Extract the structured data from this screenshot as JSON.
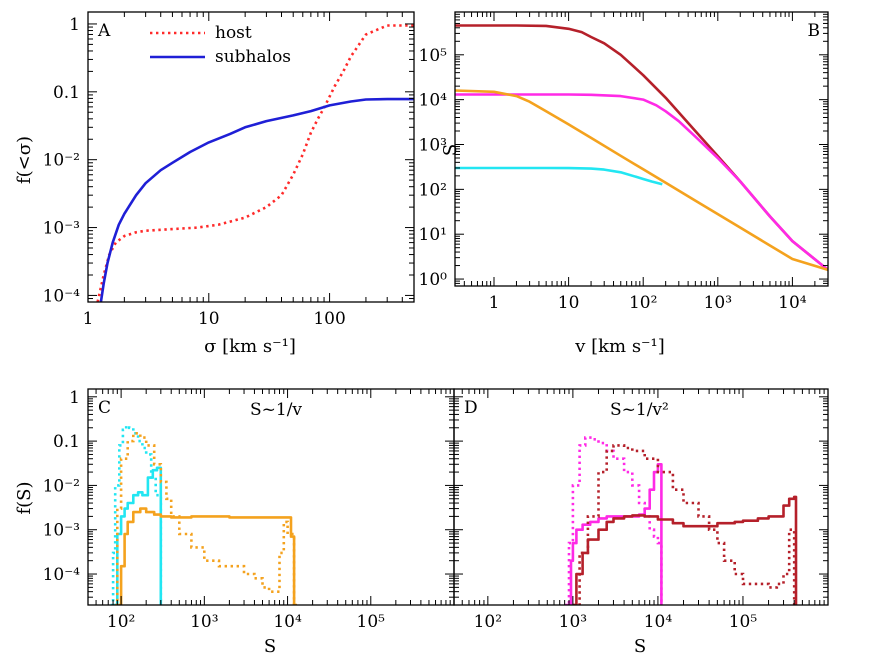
{
  "chart_data": [
    {
      "id": "A",
      "type": "line",
      "panel_label": "A",
      "xlabel": "σ [km s⁻¹]",
      "ylabel": "f(<σ)",
      "xscale": "log",
      "yscale": "log",
      "xlim": [
        1,
        500
      ],
      "ylim": [
        8e-05,
        1.5
      ],
      "xticks": [
        {
          "v": 1,
          "label": "1"
        },
        {
          "v": 10,
          "label": "10"
        },
        {
          "v": 100,
          "label": "100"
        }
      ],
      "yticks": [
        {
          "v": 0.0001,
          "label": "10⁻⁴"
        },
        {
          "v": 0.001,
          "label": "10⁻³"
        },
        {
          "v": 0.01,
          "label": "10⁻²"
        },
        {
          "v": 0.1,
          "label": "0.1"
        },
        {
          "v": 1,
          "label": "1"
        }
      ],
      "legend": {
        "position": "top-left",
        "entries": [
          {
            "name": "host",
            "color": "#ff2a2a",
            "style": "dotted"
          },
          {
            "name": "subhalos",
            "color": "#1f1fd6",
            "style": "solid"
          }
        ]
      },
      "series": [
        {
          "name": "host",
          "color": "#ff2a2a",
          "style": "dotted",
          "x": [
            1.2,
            1.35,
            1.5,
            1.7,
            2,
            2.5,
            3,
            5,
            8,
            12,
            20,
            30,
            40,
            50,
            60,
            70,
            80,
            90,
            100,
            110,
            130,
            150,
            200,
            300,
            500
          ],
          "y": [
            8e-05,
            0.0002,
            0.0004,
            0.0006,
            0.00075,
            0.00085,
            0.0009,
            0.00095,
            0.001,
            0.0011,
            0.0014,
            0.002,
            0.003,
            0.006,
            0.012,
            0.025,
            0.04,
            0.058,
            0.085,
            0.12,
            0.2,
            0.33,
            0.7,
            0.95,
            0.95
          ]
        },
        {
          "name": "subhalos",
          "color": "#1f1fd6",
          "style": "solid",
          "x": [
            1.28,
            1.35,
            1.45,
            1.6,
            1.8,
            2,
            2.5,
            3,
            4,
            5,
            7,
            10,
            15,
            20,
            30,
            50,
            70,
            100,
            150,
            200,
            300,
            500
          ],
          "y": [
            8e-05,
            0.00015,
            0.0003,
            0.0006,
            0.0011,
            0.0016,
            0.003,
            0.0045,
            0.007,
            0.009,
            0.013,
            0.018,
            0.024,
            0.03,
            0.037,
            0.045,
            0.052,
            0.063,
            0.072,
            0.077,
            0.078,
            0.078
          ]
        }
      ]
    },
    {
      "id": "B",
      "type": "line",
      "panel_label": "B",
      "xlabel": "v [km s⁻¹]",
      "ylabel": "S",
      "xscale": "log",
      "yscale": "log",
      "xlim": [
        0.3,
        30000
      ],
      "ylim": [
        0.7,
        900000
      ],
      "xticks": [
        {
          "v": 1,
          "label": "1"
        },
        {
          "v": 10,
          "label": "10"
        },
        {
          "v": 100,
          "label": "10²"
        },
        {
          "v": 1000,
          "label": "10³"
        },
        {
          "v": 10000,
          "label": "10⁴"
        }
      ],
      "yticks": [
        {
          "v": 1,
          "label": "10⁰"
        },
        {
          "v": 10,
          "label": "10¹"
        },
        {
          "v": 100,
          "label": "10²"
        },
        {
          "v": 1000,
          "label": "10³"
        },
        {
          "v": 10000,
          "label": "10⁴"
        },
        {
          "v": 100000,
          "label": "10⁵"
        }
      ],
      "series": [
        {
          "color": "#b5202a",
          "x": [
            0.3,
            2,
            5,
            10,
            15,
            20,
            30,
            50,
            100,
            200,
            500,
            1000,
            2000,
            5000,
            10000,
            30000
          ],
          "y": [
            450000,
            450000,
            440000,
            380000,
            320000,
            250000,
            180000,
            100000,
            35000,
            11000,
            2000,
            550,
            150,
            25,
            7,
            1.6
          ]
        },
        {
          "color": "#ff2ae6",
          "x": [
            0.3,
            5,
            10,
            20,
            50,
            100,
            150,
            200,
            300,
            500,
            1000,
            2000,
            5000,
            10000,
            30000
          ],
          "y": [
            13000,
            13000,
            13000,
            12800,
            12000,
            10000,
            7500,
            5500,
            3300,
            1500,
            500,
            150,
            25,
            7,
            1.6
          ]
        },
        {
          "color": "#f4a21e",
          "x": [
            0.3,
            1,
            2,
            3,
            5,
            10,
            20,
            50,
            100,
            200,
            500,
            1000,
            2000,
            5000,
            10000,
            30000
          ],
          "y": [
            16000,
            15000,
            12000,
            9000,
            5500,
            2800,
            1400,
            560,
            280,
            140,
            56,
            28,
            14,
            5.6,
            2.8,
            1.6
          ]
        },
        {
          "color": "#22e6f2",
          "x": [
            0.3,
            5,
            10,
            20,
            30,
            50,
            80,
            100,
            130,
            180
          ],
          "y": [
            300,
            300,
            298,
            290,
            275,
            240,
            190,
            170,
            150,
            130
          ]
        }
      ]
    },
    {
      "id": "C",
      "type": "line",
      "panel_label": "C",
      "annotation": "S~1/v",
      "xlabel": "S",
      "ylabel": "f(S)",
      "xscale": "log",
      "yscale": "log",
      "xlim": [
        40,
        1000000
      ],
      "ylim": [
        2e-05,
        1.5
      ],
      "xticks": [
        {
          "v": 100,
          "label": "10²"
        },
        {
          "v": 1000,
          "label": "10³"
        },
        {
          "v": 10000,
          "label": "10⁴"
        },
        {
          "v": 100000,
          "label": "10⁵"
        }
      ],
      "yticks": [
        {
          "v": 0.0001,
          "label": "10⁻⁴"
        },
        {
          "v": 0.001,
          "label": "10⁻³"
        },
        {
          "v": 0.01,
          "label": "10⁻²"
        },
        {
          "v": 0.1,
          "label": "0.1"
        },
        {
          "v": 1,
          "label": "1"
        }
      ],
      "series": [
        {
          "color": "#22e6f2",
          "style": "dotted",
          "step": true,
          "x": [
            75,
            80,
            85,
            95,
            105,
            115,
            125,
            140,
            160,
            180,
            200,
            230,
            260,
            300
          ],
          "y": [
            2e-05,
            0.0003,
            0.01,
            0.08,
            0.18,
            0.22,
            0.2,
            0.15,
            0.1,
            0.07,
            0.05,
            0.015,
            0.006,
            2e-05
          ]
        },
        {
          "color": "#22e6f2",
          "style": "solid",
          "step": true,
          "x": [
            80,
            90,
            100,
            110,
            120,
            140,
            160,
            180,
            210,
            240,
            270,
            300,
            310
          ],
          "y": [
            2e-05,
            0.0008,
            0.002,
            0.003,
            0.004,
            0.006,
            0.007,
            0.006,
            0.015,
            0.022,
            0.025,
            2e-05,
            2e-05
          ]
        },
        {
          "color": "#f4a21e",
          "style": "dotted",
          "step": true,
          "x": [
            85,
            90,
            100,
            120,
            140,
            170,
            200,
            250,
            300,
            350,
            400,
            500,
            700,
            1000,
            1500,
            2000,
            3000,
            4000,
            5000,
            6000,
            7000,
            8000,
            9000,
            10000,
            12000
          ],
          "y": [
            2e-05,
            0.003,
            0.04,
            0.1,
            0.15,
            0.12,
            0.08,
            0.03,
            0.012,
            0.005,
            0.002,
            0.0008,
            0.0004,
            0.0002,
            0.00015,
            0.00015,
            0.0001,
            8e-05,
            5e-05,
            4e-05,
            4e-05,
            0.0003,
            0.0015,
            0.0008,
            2e-05
          ]
        },
        {
          "color": "#f4a21e",
          "style": "solid",
          "step": true,
          "x": [
            90,
            100,
            110,
            120,
            140,
            170,
            200,
            250,
            300,
            400,
            500,
            700,
            1000,
            2000,
            3000,
            5000,
            8000,
            10000,
            11000,
            12000,
            13000
          ],
          "y": [
            2e-05,
            0.00015,
            0.0008,
            0.0015,
            0.0025,
            0.003,
            0.0025,
            0.0022,
            0.002,
            0.0019,
            0.0019,
            0.002,
            0.002,
            0.0019,
            0.0019,
            0.0019,
            0.0019,
            0.0019,
            0.0007,
            2e-05,
            2e-05
          ]
        }
      ]
    },
    {
      "id": "D",
      "type": "line",
      "panel_label": "D",
      "annotation": "S~1/v²",
      "xlabel": "S",
      "xscale": "log",
      "yscale": "log",
      "xlim": [
        40,
        1000000
      ],
      "ylim": [
        2e-05,
        1.5
      ],
      "xticks": [
        {
          "v": 100,
          "label": "10²"
        },
        {
          "v": 1000,
          "label": "10³"
        },
        {
          "v": 10000,
          "label": "10⁴"
        },
        {
          "v": 100000,
          "label": "10⁵"
        }
      ],
      "series": [
        {
          "color": "#ff2ae6",
          "style": "dotted",
          "step": true,
          "x": [
            800,
            900,
            1000,
            1200,
            1400,
            1700,
            2000,
            2500,
            3000,
            4000,
            5000,
            6000,
            7000,
            8000,
            9000,
            10000,
            11000
          ],
          "y": [
            2e-05,
            0.0005,
            0.01,
            0.08,
            0.12,
            0.11,
            0.09,
            0.06,
            0.04,
            0.02,
            0.01,
            0.004,
            0.002,
            0.001,
            0.0007,
            0.0005,
            2e-05
          ]
        },
        {
          "color": "#ff2ae6",
          "style": "solid",
          "step": true,
          "x": [
            850,
            950,
            1000,
            1100,
            1300,
            1600,
            2000,
            2500,
            3000,
            4000,
            5000,
            6000,
            7000,
            8000,
            9000,
            10000,
            11000
          ],
          "y": [
            2e-05,
            0.0002,
            0.0005,
            0.001,
            0.0013,
            0.0015,
            0.0018,
            0.002,
            0.002,
            0.002,
            0.002,
            0.0022,
            0.003,
            0.008,
            0.02,
            0.03,
            2e-05
          ]
        },
        {
          "color": "#b5202a",
          "style": "dotted",
          "step": true,
          "x": [
            1000,
            1200,
            1500,
            2000,
            2500,
            3000,
            4000,
            5000,
            7000,
            10000,
            15000,
            20000,
            30000,
            40000,
            50000,
            60000,
            80000,
            100000,
            150000,
            200000,
            250000,
            300000,
            350000,
            400000
          ],
          "y": [
            2e-05,
            0.0003,
            0.002,
            0.02,
            0.06,
            0.08,
            0.07,
            0.06,
            0.04,
            0.02,
            0.008,
            0.004,
            0.002,
            0.001,
            0.0005,
            0.0002,
            0.0001,
            6e-05,
            6e-05,
            5e-05,
            6e-05,
            0.0001,
            0.001,
            2e-05
          ]
        },
        {
          "color": "#b5202a",
          "style": "solid",
          "step": true,
          "x": [
            1000,
            1100,
            1300,
            1500,
            2000,
            2500,
            3000,
            4000,
            5000,
            7000,
            10000,
            15000,
            20000,
            30000,
            50000,
            80000,
            100000,
            150000,
            200000,
            300000,
            350000,
            400000,
            420000
          ],
          "y": [
            2e-05,
            0.0001,
            0.0003,
            0.0006,
            0.001,
            0.0015,
            0.0018,
            0.002,
            0.0021,
            0.002,
            0.0017,
            0.0014,
            0.0012,
            0.0012,
            0.0014,
            0.0015,
            0.0016,
            0.0018,
            0.002,
            0.0035,
            0.005,
            0.0055,
            2e-05
          ]
        }
      ]
    }
  ]
}
